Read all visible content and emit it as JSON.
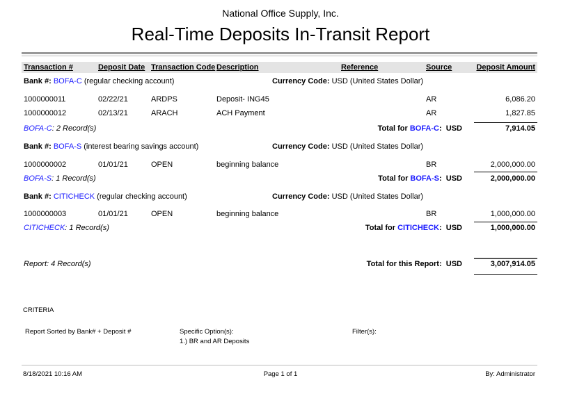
{
  "report": {
    "company": "National Office Supply, Inc.",
    "title": "Real-Time Deposits In-Transit Report"
  },
  "columns": [
    "Transaction #",
    "Deposit Date",
    "Transaction Code",
    "Description",
    "Reference",
    "Source",
    "Deposit Amount"
  ],
  "labels": {
    "bank": "Bank #:",
    "currency_code": "Currency Code:",
    "currency_value": "USD (United States Dollar)",
    "total_for": "Total for",
    "currency": "USD"
  },
  "banks": [
    {
      "code": "BOFA-C",
      "desc": "(regular checking account)",
      "records": ": 2 Record(s)",
      "total": "7,914.05",
      "rows": [
        {
          "id": "1000000011",
          "date": "02/22/21",
          "tcode": "ARDPS",
          "desc": "Deposit- ING45",
          "ref": "",
          "source": "AR",
          "amount": "6,086.20"
        },
        {
          "id": "1000000012",
          "date": "02/13/21",
          "tcode": "ARACH",
          "desc": "ACH Payment",
          "ref": "",
          "source": "AR",
          "amount": "1,827.85"
        }
      ]
    },
    {
      "code": "BOFA-S",
      "desc": "(interest bearing savings account)",
      "records": ": 1 Record(s)",
      "total": "2,000,000.00",
      "rows": [
        {
          "id": "1000000002",
          "date": "01/01/21",
          "tcode": "OPEN",
          "desc": "beginning balance",
          "ref": "",
          "source": "BR",
          "amount": "2,000,000.00"
        }
      ]
    },
    {
      "code": "CITICHECK",
      "desc": "(regular checking account)",
      "records": ": 1 Record(s)",
      "total": "1,000,000.00",
      "rows": [
        {
          "id": "1000000003",
          "date": "01/01/21",
          "tcode": "OPEN",
          "desc": "beginning balance",
          "ref": "",
          "source": "BR",
          "amount": "1,000,000.00"
        }
      ]
    }
  ],
  "summary": {
    "records": "Report: 4 Record(s)",
    "total_label": "Total for this Report:",
    "currency": "USD",
    "total": "3,007,914.05"
  },
  "criteria": {
    "heading": "CRITERIA",
    "sorted": "Report Sorted by Bank# + Deposit #",
    "options_label": "Specific Option(s):",
    "option_1": "1.) BR and AR Deposits",
    "filters_label": "Filter(s):"
  },
  "footer": {
    "datetime": "8/18/2021 10:16 AM",
    "page": "Page 1 of 1",
    "by": "By: Administrator"
  },
  "colors": {
    "link": "#1a1aff",
    "header_bg": "#e4e4e4"
  }
}
